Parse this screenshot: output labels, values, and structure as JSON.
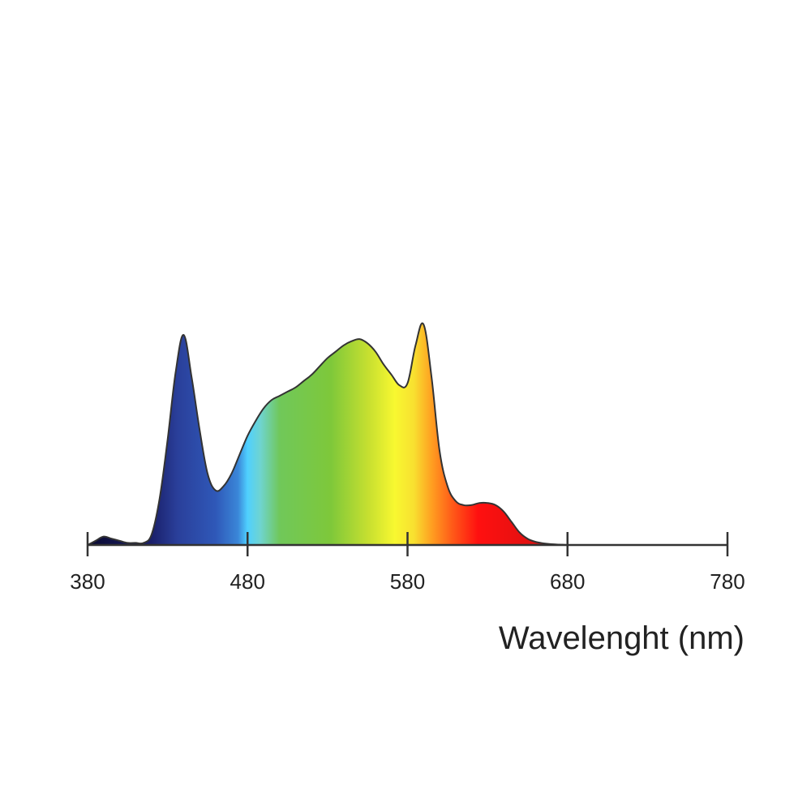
{
  "chart_data": {
    "type": "area",
    "title": "",
    "xlabel": "Wavelenght (nm)",
    "ylabel": "",
    "xlim": [
      380,
      780
    ],
    "ylim": [
      0,
      1
    ],
    "grid": false,
    "legend": "none",
    "x_ticks": [
      380,
      480,
      580,
      680,
      780
    ],
    "x_tick_labels": [
      "380",
      "480",
      "580",
      "680",
      "780"
    ],
    "series": [
      {
        "x": [
          380,
          385,
          390,
          395,
          400,
          405,
          410,
          415,
          420,
          425,
          430,
          435,
          440,
          445,
          450,
          455,
          460,
          465,
          470,
          475,
          480,
          485,
          490,
          495,
          500,
          505,
          510,
          515,
          520,
          525,
          530,
          535,
          540,
          545,
          550,
          555,
          560,
          565,
          570,
          575,
          580,
          585,
          590,
          595,
          600,
          605,
          610,
          615,
          620,
          625,
          630,
          635,
          640,
          645,
          650,
          655,
          660,
          665,
          670,
          675,
          680,
          685,
          690,
          695,
          700,
          705,
          710,
          715,
          720,
          725,
          730,
          735,
          740,
          745,
          750,
          755,
          760,
          765,
          770,
          775,
          780
        ],
        "values": [
          0.0,
          0.02,
          0.04,
          0.03,
          0.02,
          0.01,
          0.01,
          0.01,
          0.05,
          0.22,
          0.5,
          0.82,
          1.0,
          0.8,
          0.55,
          0.34,
          0.26,
          0.28,
          0.34,
          0.43,
          0.52,
          0.59,
          0.65,
          0.69,
          0.71,
          0.73,
          0.75,
          0.78,
          0.81,
          0.85,
          0.89,
          0.92,
          0.95,
          0.97,
          0.98,
          0.96,
          0.92,
          0.86,
          0.81,
          0.76,
          0.77,
          0.95,
          1.05,
          0.8,
          0.45,
          0.28,
          0.21,
          0.19,
          0.19,
          0.2,
          0.2,
          0.19,
          0.16,
          0.11,
          0.06,
          0.03,
          0.015,
          0.008,
          0.004,
          0.002,
          0.0,
          0.0,
          0.0,
          0.0,
          0.0,
          0.0,
          0.0,
          0.0,
          0.0,
          0.0,
          0.0,
          0.0,
          0.0,
          0.0,
          0.0,
          0.0,
          0.0,
          0.0,
          0.0,
          0.0,
          0.0
        ]
      }
    ],
    "colors": {
      "outline": "#333333",
      "axis": "#333333"
    }
  }
}
